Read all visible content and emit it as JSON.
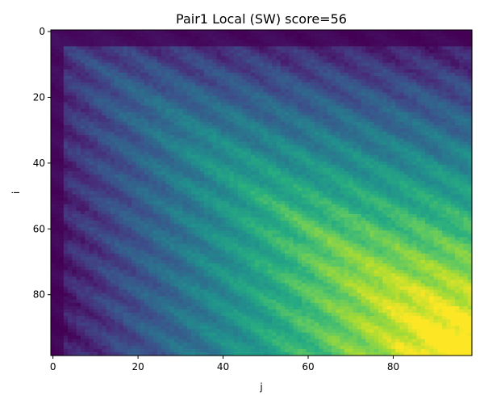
{
  "chart_data": {
    "type": "heatmap",
    "title": "Pair1 Local (SW) score=56",
    "xlabel": "j",
    "ylabel": "i",
    "rows": 99,
    "cols": 99,
    "x_range": [
      0,
      98
    ],
    "y_range": [
      0,
      98
    ],
    "y_axis_direction": "top-to-bottom",
    "x_ticks": [
      0,
      20,
      40,
      60,
      80
    ],
    "y_ticks": [
      0,
      20,
      40,
      60,
      80
    ],
    "value_range": [
      0,
      56
    ],
    "max_score": 56,
    "max_cell": [
      95,
      96
    ],
    "colormap": "viridis",
    "grid": false,
    "legend": "none"
  },
  "colors": {
    "axis": "#000000",
    "background": "#ffffff"
  }
}
